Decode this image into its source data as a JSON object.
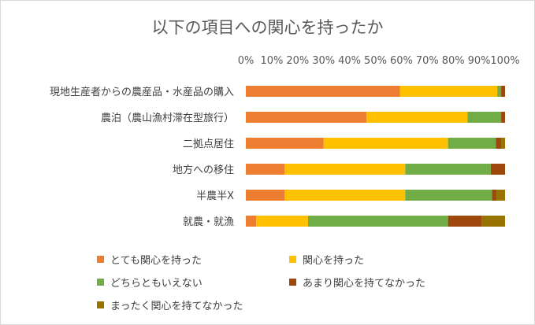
{
  "chart_data": {
    "type": "bar",
    "orientation": "horizontal",
    "stacked": true,
    "percent_stacked": true,
    "title": "以下の項目への関心を持ったか",
    "categories": [
      "現地生産者からの農産品・水産品の購入",
      "農泊（農山漁村滞在型旅行）",
      "二拠点居住",
      "地方への移住",
      "半農半X",
      "就農・就漁"
    ],
    "series": [
      {
        "name": "とても関心を持った",
        "color": "#ED7D31",
        "values": [
          59.5,
          46.5,
          30,
          15,
          15,
          4
        ]
      },
      {
        "name": "関心を持った",
        "color": "#FFC000",
        "values": [
          37.5,
          39,
          48,
          46.5,
          46.5,
          20
        ]
      },
      {
        "name": "どちらともいえない",
        "color": "#70AD47",
        "values": [
          1.5,
          13,
          18.5,
          33,
          33.5,
          54
        ]
      },
      {
        "name": "あまり関心を持てなかった",
        "color": "#9E480E",
        "values": [
          1.5,
          1.5,
          2,
          5.5,
          1.5,
          13
        ]
      },
      {
        "name": "まったく関心を持てなかった",
        "color": "#997300",
        "values": [
          0,
          0,
          1.5,
          0,
          3.5,
          9
        ]
      }
    ],
    "xlim": [
      0,
      100
    ],
    "xticks": [
      "0%",
      "10%",
      "20%",
      "30%",
      "40%",
      "50%",
      "60%",
      "70%",
      "80%",
      "90%",
      "100%"
    ],
    "xaxis_position": "top",
    "grid": false,
    "legend_position": "bottom"
  }
}
